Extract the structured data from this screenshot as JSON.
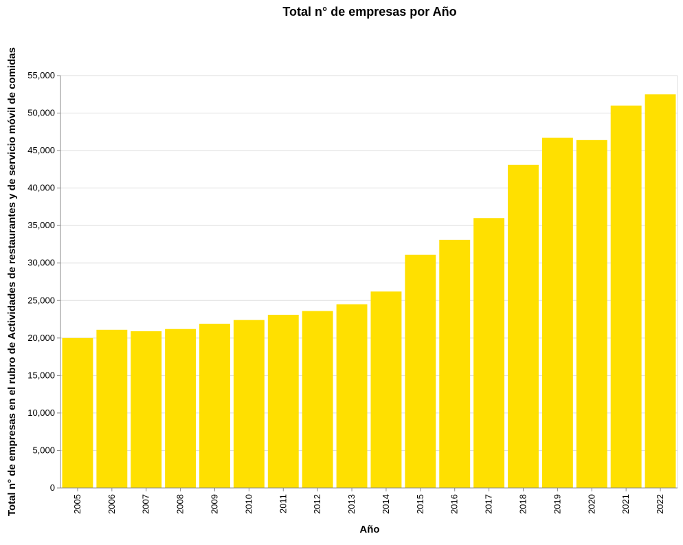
{
  "chart_data": {
    "type": "bar",
    "title": "Total n° de empresas por Año",
    "xlabel": "Año",
    "ylabel": "Total n° de empresas en el rubro de Actividades de restaurantes y de servicio móvil de comidas",
    "categories": [
      "2005",
      "2006",
      "2007",
      "2008",
      "2009",
      "2010",
      "2011",
      "2012",
      "2013",
      "2014",
      "2015",
      "2016",
      "2017",
      "2018",
      "2019",
      "2020",
      "2021",
      "2022"
    ],
    "values": [
      20000,
      21100,
      20900,
      21200,
      21900,
      22400,
      23100,
      23600,
      24500,
      26200,
      31100,
      33100,
      36000,
      43100,
      46700,
      46400,
      51000,
      52500
    ],
    "ylim": [
      0,
      55000
    ],
    "yticks": [
      0,
      5000,
      10000,
      15000,
      20000,
      25000,
      30000,
      35000,
      40000,
      45000,
      50000,
      55000
    ],
    "ytick_labels": [
      "0",
      "5,000",
      "10,000",
      "15,000",
      "20,000",
      "25,000",
      "30,000",
      "35,000",
      "40,000",
      "45,000",
      "50,000",
      "55,000"
    ],
    "grid": true,
    "bar_color": "#FFE000"
  }
}
